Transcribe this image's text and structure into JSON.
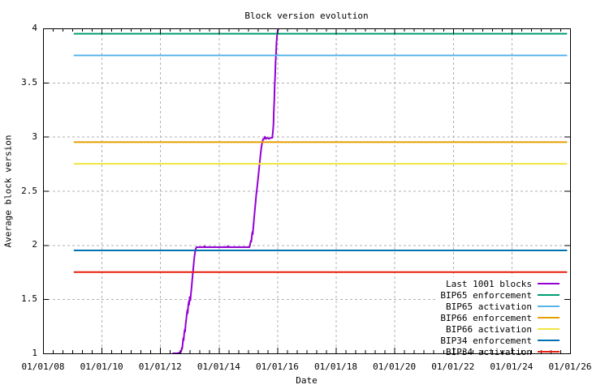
{
  "title": "Block version evolution",
  "x_axis": {
    "label": "Date",
    "tick_labels": [
      "01/01/08",
      "01/01/10",
      "01/01/12",
      "01/01/14",
      "01/01/16",
      "01/01/18",
      "01/01/20",
      "01/01/22",
      "01/01/24",
      "01/01/26"
    ],
    "tick_years": [
      2008,
      2010,
      2012,
      2014,
      2016,
      2018,
      2020,
      2022,
      2024,
      2026
    ],
    "range_years": [
      2008,
      2026
    ],
    "minor_divisions_per_interval": 6
  },
  "y_axis": {
    "label": "Average block version",
    "tick_labels": [
      "1",
      "1.5",
      "2",
      "2.5",
      "3",
      "3.5",
      "4"
    ],
    "tick_values": [
      1,
      1.5,
      2,
      2.5,
      3,
      3.5,
      4
    ],
    "range": [
      1,
      4
    ]
  },
  "colors": {
    "background": "#ffffff",
    "axis": "#000000",
    "grid": "#b0b0b0",
    "text": "#000000"
  },
  "legend": {
    "position": "bottom-right",
    "items": [
      {
        "label": "Last 1001 blocks",
        "color": "#9400d3"
      },
      {
        "label": "BIP65 enforcement",
        "color": "#009e73"
      },
      {
        "label": "BIP65 activation",
        "color": "#56b4e9"
      },
      {
        "label": "BIP66 enforcement",
        "color": "#e69f00"
      },
      {
        "label": "BIP66 activation",
        "color": "#f0e442"
      },
      {
        "label": "BIP34 enforcement",
        "color": "#0072b2"
      },
      {
        "label": "BIP34 activation",
        "color": "#e51e10"
      }
    ]
  },
  "chart_data": {
    "type": "line",
    "title": "Block version evolution",
    "xlabel": "Date",
    "ylabel": "Average block version",
    "x_range_years": [
      2008,
      2026
    ],
    "ylim": [
      1,
      4
    ],
    "grid": true,
    "legend_position": "bottom-right",
    "series": [
      {
        "name": "Last 1001 blocks",
        "color": "#9400d3",
        "kind": "line",
        "points": [
          [
            2012.45,
            1.0
          ],
          [
            2012.58,
            1.0
          ],
          [
            2012.7,
            1.01
          ],
          [
            2012.72,
            1.02
          ],
          [
            2012.74,
            1.05
          ],
          [
            2012.75,
            1.04
          ],
          [
            2012.77,
            1.09
          ],
          [
            2012.79,
            1.14
          ],
          [
            2012.8,
            1.12
          ],
          [
            2012.82,
            1.18
          ],
          [
            2012.84,
            1.22
          ],
          [
            2012.85,
            1.2
          ],
          [
            2012.87,
            1.27
          ],
          [
            2012.89,
            1.31
          ],
          [
            2012.91,
            1.36
          ],
          [
            2012.93,
            1.4
          ],
          [
            2012.94,
            1.37
          ],
          [
            2012.96,
            1.44
          ],
          [
            2012.98,
            1.48
          ],
          [
            2012.99,
            1.45
          ],
          [
            2013.01,
            1.52
          ],
          [
            2013.03,
            1.49
          ],
          [
            2013.05,
            1.55
          ],
          [
            2013.07,
            1.6
          ],
          [
            2013.09,
            1.66
          ],
          [
            2013.11,
            1.72
          ],
          [
            2013.13,
            1.78
          ],
          [
            2013.15,
            1.84
          ],
          [
            2013.17,
            1.89
          ],
          [
            2013.19,
            1.93
          ],
          [
            2013.21,
            1.96
          ],
          [
            2013.24,
            1.98
          ],
          [
            2013.5,
            1.98
          ],
          [
            2013.51,
            1.99
          ],
          [
            2013.53,
            1.98
          ],
          [
            2014.3,
            1.98
          ],
          [
            2014.31,
            1.99
          ],
          [
            2014.33,
            1.98
          ],
          [
            2015.05,
            1.98
          ],
          [
            2015.07,
            2.0
          ],
          [
            2015.08,
            2.02
          ],
          [
            2015.1,
            2.04
          ],
          [
            2015.11,
            2.03
          ],
          [
            2015.13,
            2.08
          ],
          [
            2015.15,
            2.12
          ],
          [
            2015.16,
            2.1
          ],
          [
            2015.18,
            2.16
          ],
          [
            2015.2,
            2.22
          ],
          [
            2015.22,
            2.28
          ],
          [
            2015.24,
            2.34
          ],
          [
            2015.26,
            2.4
          ],
          [
            2015.28,
            2.46
          ],
          [
            2015.31,
            2.53
          ],
          [
            2015.34,
            2.6
          ],
          [
            2015.37,
            2.68
          ],
          [
            2015.4,
            2.76
          ],
          [
            2015.43,
            2.84
          ],
          [
            2015.46,
            2.91
          ],
          [
            2015.49,
            2.95
          ],
          [
            2015.52,
            2.98
          ],
          [
            2015.56,
            2.98
          ],
          [
            2015.58,
            3.0
          ],
          [
            2015.61,
            2.98
          ],
          [
            2015.66,
            2.99
          ],
          [
            2015.72,
            2.98
          ],
          [
            2015.78,
            2.99
          ],
          [
            2015.83,
            2.99
          ],
          [
            2015.85,
            3.04
          ],
          [
            2015.87,
            3.12
          ],
          [
            2015.88,
            3.22
          ],
          [
            2015.9,
            3.34
          ],
          [
            2015.91,
            3.46
          ],
          [
            2015.93,
            3.58
          ],
          [
            2015.94,
            3.68
          ],
          [
            2015.96,
            3.78
          ],
          [
            2015.97,
            3.86
          ],
          [
            2015.99,
            3.93
          ],
          [
            2016.01,
            3.97
          ],
          [
            2016.03,
            3.99
          ]
        ]
      },
      {
        "name": "BIP65 enforcement",
        "color": "#009e73",
        "kind": "hline",
        "y": 3.95,
        "x_start": 2009.05,
        "x_end": 2025.9
      },
      {
        "name": "BIP65 activation",
        "color": "#56b4e9",
        "kind": "hline",
        "y": 3.75,
        "x_start": 2009.05,
        "x_end": 2025.9
      },
      {
        "name": "BIP66 enforcement",
        "color": "#e69f00",
        "kind": "hline",
        "y": 2.95,
        "x_start": 2009.05,
        "x_end": 2025.9
      },
      {
        "name": "BIP66 activation",
        "color": "#f0e442",
        "kind": "hline",
        "y": 2.75,
        "x_start": 2009.05,
        "x_end": 2025.9
      },
      {
        "name": "BIP34 enforcement",
        "color": "#0072b2",
        "kind": "hline",
        "y": 1.95,
        "x_start": 2009.05,
        "x_end": 2025.9
      },
      {
        "name": "BIP34 activation",
        "color": "#e51e10",
        "kind": "hline",
        "y": 1.75,
        "x_start": 2009.05,
        "x_end": 2025.9
      }
    ]
  }
}
